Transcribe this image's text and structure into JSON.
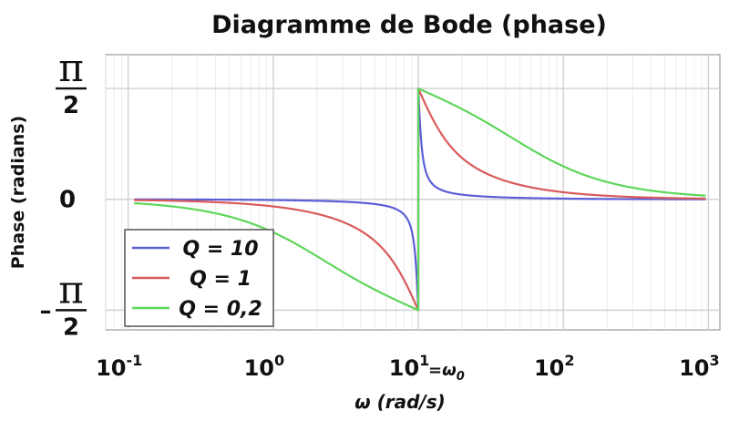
{
  "chart_data": {
    "type": "line",
    "title": "Diagramme de Bode (phase)",
    "xlabel": "ω (rad/s)",
    "ylabel": "Phase (radians)",
    "x_scale": "log",
    "xlim": [
      0.07,
      1200
    ],
    "ylim": [
      -1.85,
      2.05
    ],
    "grid": true,
    "legend_position": "bottom-left",
    "x_ticks": [
      {
        "value": 0.1,
        "base": "10",
        "exp": "-1"
      },
      {
        "value": 1,
        "base": "10",
        "exp": "0"
      },
      {
        "value": 10,
        "base": "10",
        "exp": "1"
      },
      {
        "value": 100,
        "base": "10",
        "exp": "2"
      },
      {
        "value": 1000,
        "base": "10",
        "exp": "3"
      }
    ],
    "y_ticks": [
      {
        "value": 1.5708,
        "sign": "",
        "numerator": "π",
        "denominator": "2"
      },
      {
        "value": 0,
        "label": "0"
      },
      {
        "value": -1.5708,
        "sign": "–",
        "numerator": "π",
        "denominator": "2"
      }
    ],
    "annotation": {
      "prefix": "=ω",
      "subscript": "0"
    },
    "omega0": 10,
    "series": [
      {
        "name": "Q = 10",
        "color": "#5b5fd6",
        "Q": 10
      },
      {
        "name": "Q = 1",
        "color": "#d95b5b",
        "Q": 1
      },
      {
        "name": "Q = 0,2",
        "color": "#5fd65b",
        "Q": 0.2
      }
    ]
  }
}
